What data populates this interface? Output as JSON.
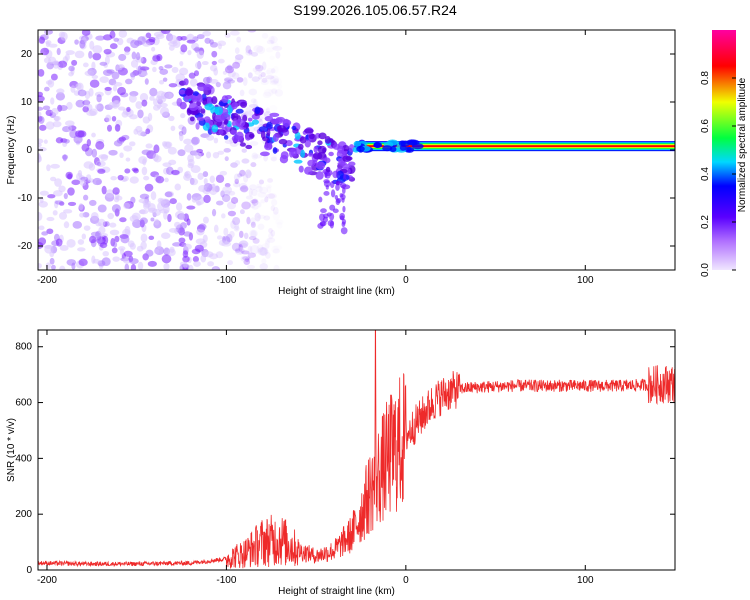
{
  "title": "S199.2026.105.06.57.R24",
  "chart_data": [
    {
      "type": "heatmap",
      "name": "spectrogram",
      "xlabel": "Height of straight line (km)",
      "ylabel": "Frequency (Hz)",
      "xlim": [
        -205,
        150
      ],
      "ylim": [
        -25,
        25
      ],
      "xticks": [
        -200,
        -100,
        0,
        100
      ],
      "yticks": [
        -20,
        -10,
        0,
        10,
        20
      ],
      "colorbar": {
        "label": "Normalized spectral amplitude",
        "range": [
          0,
          1
        ],
        "ticks": [
          "0.0",
          "0.2",
          "0.4",
          "0.6",
          "0.8"
        ],
        "colors": [
          "#f0e6ff",
          "#7a00ff",
          "#0000ff",
          "#00c8ff",
          "#00ff40",
          "#f0ff00",
          "#ff0000",
          "#ff00a0"
        ]
      },
      "features": [
        {
          "description": "scattered noise",
          "x_range": [
            -205,
            -100
          ],
          "freq_range": [
            -25,
            25
          ],
          "amplitude": 0.15
        },
        {
          "description": "descending signal streak",
          "x_start": -125,
          "x_end": -30,
          "freq_start": 11,
          "freq_end": -4,
          "amplitude": 0.35
        },
        {
          "description": "stable carrier line",
          "x_start": -28,
          "x_end": 150,
          "freq": 0.8,
          "amplitude": 0.95
        }
      ]
    },
    {
      "type": "line",
      "name": "snr",
      "xlabel": "Height of straight line (km)",
      "ylabel": "SNR (10 * v/v)",
      "xlim": [
        -205,
        150
      ],
      "ylim": [
        0,
        860
      ],
      "xticks": [
        -200,
        -100,
        0,
        100
      ],
      "yticks": [
        0,
        200,
        400,
        600,
        800
      ],
      "color": "#ee2a2a",
      "series": [
        {
          "name": "SNR",
          "x": [
            -205,
            -180,
            -150,
            -120,
            -100,
            -90,
            -80,
            -70,
            -60,
            -50,
            -40,
            -30,
            -25,
            -20,
            -15,
            -10,
            -5,
            0,
            5,
            10,
            15,
            20,
            25,
            30,
            40,
            60,
            80,
            100,
            120,
            140,
            150
          ],
          "values": [
            25,
            22,
            22,
            25,
            40,
            60,
            100,
            110,
            70,
            50,
            70,
            130,
            200,
            280,
            340,
            400,
            440,
            480,
            520,
            560,
            600,
            625,
            640,
            650,
            655,
            660,
            660,
            660,
            660,
            665,
            670
          ]
        }
      ],
      "peak": {
        "x": -17,
        "value": 860
      }
    }
  ]
}
